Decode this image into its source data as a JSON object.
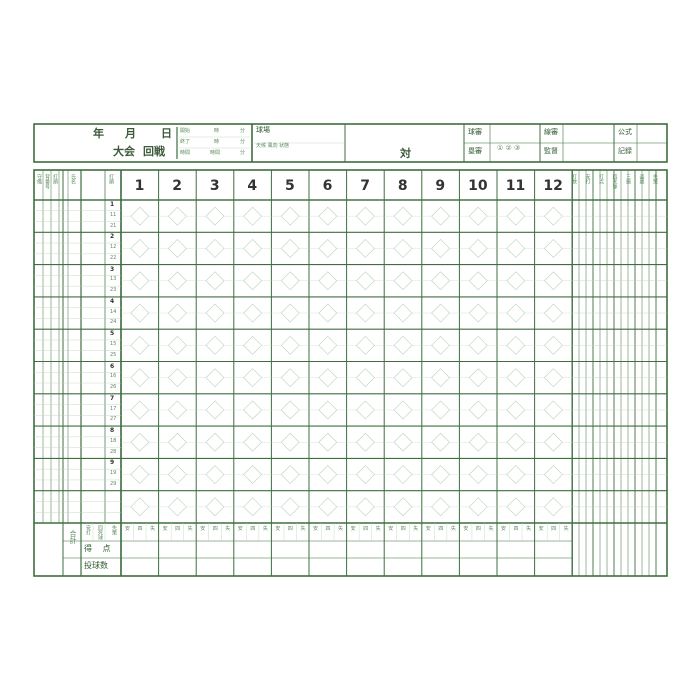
{
  "header": {
    "year": "年",
    "month": "月",
    "day": "日",
    "tournament": "大会",
    "round": "回戦",
    "start": [
      "開始",
      "時",
      "分"
    ],
    "end": [
      "終了",
      "時",
      "分"
    ],
    "duration": [
      "時間",
      "時間",
      "分"
    ],
    "stadium": "球場",
    "weather": "天候 風向 状態",
    "versus": "対",
    "umpire_plate": "球審",
    "umpire_base": "塁審",
    "umpire_base_numbers": "① ② ③",
    "umpire_line": "線審",
    "manager": "監督",
    "official": "公式",
    "scorer": "記録"
  },
  "grid": {
    "left_headers": [
      "守備",
      "背番号",
      "打順",
      "氏名",
      "打順"
    ],
    "innings": [
      "1",
      "2",
      "3",
      "4",
      "5",
      "6",
      "7",
      "8",
      "9",
      "10",
      "11",
      "12"
    ],
    "right_headers": [
      "打数",
      "安打",
      "打点",
      "四死球",
      "三振",
      "盗塁",
      "失策"
    ],
    "batter_rows": [
      {
        "order": "1",
        "subs": [
          "11",
          "21"
        ]
      },
      {
        "order": "2",
        "subs": [
          "12",
          "22"
        ]
      },
      {
        "order": "3",
        "subs": [
          "13",
          "23"
        ]
      },
      {
        "order": "4",
        "subs": [
          "14",
          "24"
        ]
      },
      {
        "order": "5",
        "subs": [
          "15",
          "25"
        ]
      },
      {
        "order": "6",
        "subs": [
          "16",
          "26"
        ]
      },
      {
        "order": "7",
        "subs": [
          "17",
          "27"
        ]
      },
      {
        "order": "8",
        "subs": [
          "18",
          "28"
        ]
      },
      {
        "order": "9",
        "subs": [
          "19",
          "29"
        ]
      },
      {
        "order": "",
        "subs": [
          "",
          ""
        ]
      }
    ],
    "summary_sub_labels": [
      "安",
      "四",
      "失"
    ],
    "summary_label_row1": [
      "安打",
      "四死球",
      "失策"
    ],
    "runs_label": "得 点",
    "pitches_label": "投球数",
    "team_label": "合計"
  },
  "colors": {
    "line": "#3f6e3f",
    "light": "#b9d3b9",
    "text": "#2f5a2f"
  }
}
